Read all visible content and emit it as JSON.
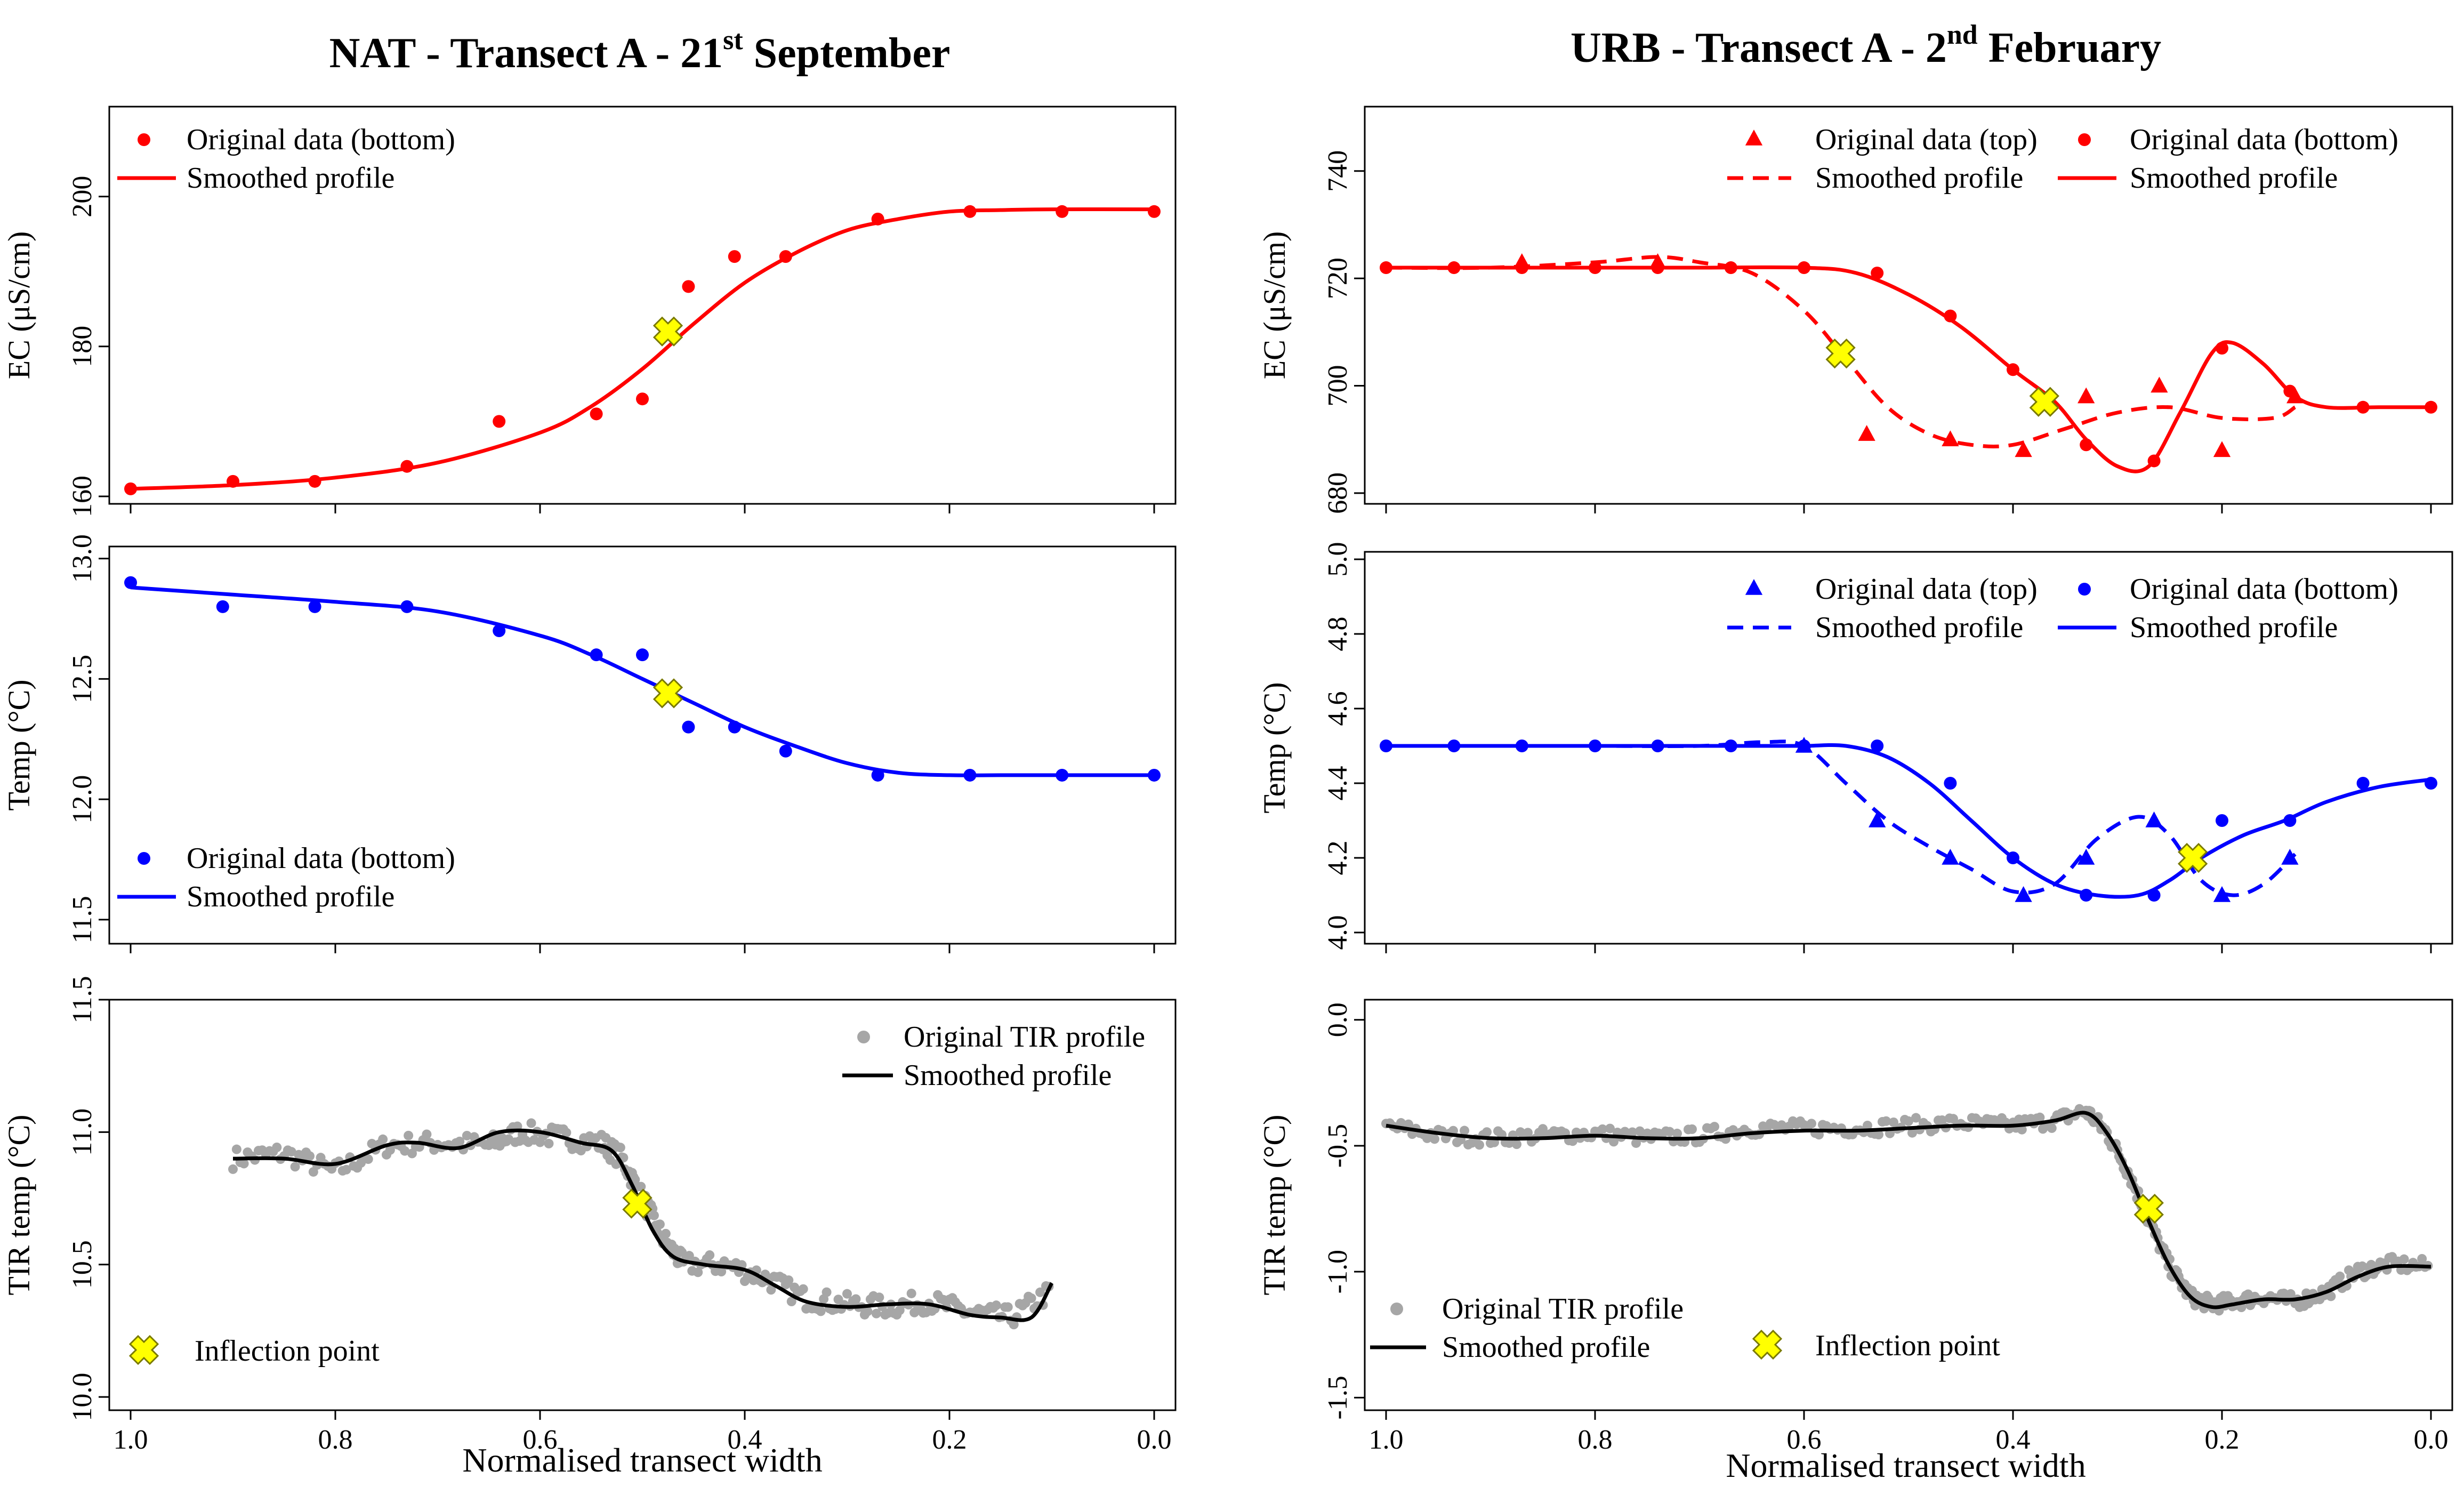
{
  "figure": {
    "left_title": "NAT - Transect A - 21",
    "left_title_sup": "st",
    "left_title_end": " September",
    "right_title": "URB - Transect A - 2",
    "right_title_sup": "nd",
    "right_title_end": " February",
    "xlabel": "Normalised transect width"
  },
  "colors": {
    "red": "#ff0000",
    "blue": "#0000ff",
    "gray": "#a6a6a6",
    "black": "#000000",
    "marker": "#ffff00"
  },
  "chart_data": [
    {
      "id": "nat-ec",
      "type": "scatter+line",
      "ylabel": "EC (μS/cm)",
      "xlim": [
        1.0,
        0.0
      ],
      "ylim": [
        159,
        212
      ],
      "xticks": [
        1.0,
        0.8,
        0.6,
        0.4,
        0.2,
        0.0
      ],
      "xtick_labels": [
        "1.0",
        "0.8",
        "0.6",
        "0.4",
        "0.2",
        "0.0"
      ],
      "yticks": [
        160,
        180,
        200
      ],
      "ytick_labels": [
        "160",
        "180",
        "200"
      ],
      "color": "red",
      "legend": [
        "Original data (bottom)",
        "Smoothed profile"
      ],
      "series": [
        {
          "name": "Original data (bottom)",
          "kind": "points",
          "marker": "circle",
          "x": [
            1.0,
            0.9,
            0.82,
            0.73,
            0.64,
            0.545,
            0.5,
            0.455,
            0.41,
            0.36,
            0.27,
            0.18,
            0.09,
            0.0
          ],
          "y": [
            161,
            162,
            162,
            164,
            170,
            171,
            173,
            188,
            192,
            192,
            197,
            198,
            198,
            198
          ]
        },
        {
          "name": "Smoothed profile",
          "kind": "line",
          "dash": false,
          "x": [
            1.0,
            0.9,
            0.8,
            0.7,
            0.6,
            0.55,
            0.5,
            0.45,
            0.4,
            0.35,
            0.3,
            0.25,
            0.2,
            0.15,
            0.1,
            0.0
          ],
          "y": [
            161,
            161.5,
            162.5,
            164.5,
            168.5,
            172,
            177,
            183,
            188.5,
            192.5,
            195.5,
            197,
            198,
            198.2,
            198.3,
            198.3
          ]
        }
      ],
      "inflection": {
        "x": 0.475,
        "y": 182
      }
    },
    {
      "id": "nat-temp",
      "type": "scatter+line",
      "ylabel": "Temp (°C)",
      "xlim": [
        1.0,
        0.0
      ],
      "ylim": [
        11.4,
        13.05
      ],
      "xticks": [
        1.0,
        0.8,
        0.6,
        0.4,
        0.2,
        0.0
      ],
      "xtick_labels": [
        "1.0",
        "0.8",
        "0.6",
        "0.4",
        "0.2",
        "0.0"
      ],
      "yticks": [
        11.5,
        12.0,
        12.5,
        13.0
      ],
      "ytick_labels": [
        "11.5",
        "12.0",
        "12.5",
        "13.0"
      ],
      "color": "blue",
      "legend": [
        "Original data (bottom)",
        "Smoothed profile"
      ],
      "series": [
        {
          "name": "Original data (bottom)",
          "kind": "points",
          "marker": "circle",
          "x": [
            1.0,
            0.91,
            0.82,
            0.73,
            0.64,
            0.545,
            0.5,
            0.455,
            0.41,
            0.36,
            0.27,
            0.18,
            0.09,
            0.0
          ],
          "y": [
            12.9,
            12.8,
            12.8,
            12.8,
            12.7,
            12.6,
            12.6,
            12.3,
            12.3,
            12.2,
            12.1,
            12.1,
            12.1,
            12.1
          ]
        },
        {
          "name": "Smoothed profile",
          "kind": "line",
          "dash": false,
          "x": [
            1.0,
            0.9,
            0.8,
            0.7,
            0.6,
            0.55,
            0.5,
            0.45,
            0.4,
            0.35,
            0.3,
            0.25,
            0.2,
            0.15,
            0.1,
            0.0
          ],
          "y": [
            12.88,
            12.85,
            12.82,
            12.78,
            12.68,
            12.6,
            12.5,
            12.4,
            12.3,
            12.22,
            12.15,
            12.11,
            12.1,
            12.1,
            12.1,
            12.1
          ]
        }
      ],
      "inflection": {
        "x": 0.475,
        "y": 12.44
      }
    },
    {
      "id": "nat-tir",
      "type": "scatter+line",
      "ylabel": "TIR temp (°C)",
      "xlim": [
        1.0,
        0.0
      ],
      "ylim": [
        9.95,
        11.5
      ],
      "xticks": [
        1.0,
        0.8,
        0.6,
        0.4,
        0.2,
        0.0
      ],
      "xtick_labels": [
        "1.0",
        "0.8",
        "0.6",
        "0.4",
        "0.2",
        "0.0"
      ],
      "yticks": [
        10.0,
        10.5,
        11.0,
        11.5
      ],
      "ytick_labels": [
        "10.0",
        "10.5",
        "11.0",
        "11.5"
      ],
      "color": "gray",
      "legend": [
        "Original TIR profile",
        "Smoothed profile",
        "Inflection point"
      ],
      "series": [
        {
          "name": "Original TIR profile",
          "kind": "points",
          "marker": "circle",
          "noise": 0.04,
          "x": [
            0.9,
            0.85,
            0.8,
            0.75,
            0.7,
            0.65,
            0.62,
            0.58,
            0.54,
            0.52,
            0.5,
            0.48,
            0.46,
            0.42,
            0.38,
            0.34,
            0.3,
            0.26,
            0.22,
            0.18,
            0.14,
            0.1
          ],
          "y": [
            10.9,
            10.92,
            10.85,
            10.95,
            10.96,
            10.95,
            11.0,
            10.98,
            10.96,
            10.9,
            10.75,
            10.6,
            10.5,
            10.5,
            10.45,
            10.37,
            10.35,
            10.34,
            10.36,
            10.32,
            10.3,
            10.4
          ]
        },
        {
          "name": "Smoothed profile",
          "kind": "line",
          "dash": false,
          "color": "black",
          "x": [
            0.9,
            0.85,
            0.8,
            0.75,
            0.72,
            0.68,
            0.64,
            0.6,
            0.56,
            0.53,
            0.51,
            0.49,
            0.47,
            0.44,
            0.4,
            0.37,
            0.34,
            0.3,
            0.26,
            0.22,
            0.18,
            0.15,
            0.12,
            0.1
          ],
          "y": [
            10.9,
            10.9,
            10.88,
            10.95,
            10.96,
            10.94,
            11.0,
            11.0,
            10.96,
            10.93,
            10.8,
            10.63,
            10.53,
            10.5,
            10.48,
            10.42,
            10.36,
            10.34,
            10.35,
            10.35,
            10.31,
            10.3,
            10.3,
            10.43
          ]
        }
      ],
      "inflection": {
        "x": 0.505,
        "y": 10.73
      }
    },
    {
      "id": "urb-ec",
      "type": "scatter+line",
      "ylabel": "EC (μS/cm)",
      "xlim": [
        1.0,
        0.0
      ],
      "ylim": [
        678,
        752
      ],
      "xticks": [
        1.0,
        0.8,
        0.6,
        0.4,
        0.2,
        0.0
      ],
      "xtick_labels": [
        "1.0",
        "0.8",
        "0.6",
        "0.4",
        "0.2",
        "0.0"
      ],
      "yticks": [
        680,
        700,
        720,
        740
      ],
      "ytick_labels": [
        "680",
        "700",
        "720",
        "740"
      ],
      "color": "red",
      "legend": [
        "Original data (top)",
        "Original data (bottom)",
        "Smoothed profile",
        "Smoothed profile"
      ],
      "series": [
        {
          "name": "Original data (top)",
          "kind": "points",
          "marker": "triangle",
          "x": [
            0.87,
            0.74,
            0.54,
            0.46,
            0.39,
            0.33,
            0.26,
            0.2,
            0.13
          ],
          "y": [
            723,
            723,
            691,
            690,
            688,
            698,
            700,
            688,
            698
          ]
        },
        {
          "name": "Original data (bottom)",
          "kind": "points",
          "marker": "circle",
          "x": [
            1.0,
            0.935,
            0.87,
            0.8,
            0.74,
            0.67,
            0.6,
            0.53,
            0.46,
            0.4,
            0.33,
            0.265,
            0.2,
            0.135,
            0.065,
            0.0
          ],
          "y": [
            722,
            722,
            722,
            722,
            722,
            722,
            722,
            721,
            713,
            703,
            689,
            686,
            707,
            699,
            696,
            696
          ]
        },
        {
          "name": "Smoothed profile (top)",
          "kind": "line",
          "dash": true,
          "x": [
            1.0,
            0.9,
            0.8,
            0.74,
            0.7,
            0.65,
            0.6,
            0.56,
            0.52,
            0.48,
            0.44,
            0.4,
            0.35,
            0.3,
            0.25,
            0.2,
            0.15,
            0.13
          ],
          "y": [
            722,
            722,
            723,
            724,
            723,
            721,
            714,
            705,
            696,
            691,
            689,
            689,
            692,
            695,
            696,
            694,
            694,
            696
          ]
        },
        {
          "name": "Smoothed profile (bottom)",
          "kind": "line",
          "dash": false,
          "x": [
            1.0,
            0.9,
            0.8,
            0.7,
            0.6,
            0.55,
            0.5,
            0.45,
            0.4,
            0.36,
            0.33,
            0.3,
            0.27,
            0.24,
            0.21,
            0.19,
            0.16,
            0.13,
            0.1,
            0.05,
            0.0
          ],
          "y": [
            722,
            722,
            722,
            722,
            722,
            721,
            717,
            711,
            703,
            697,
            690,
            685,
            685,
            695,
            706,
            708,
            704,
            698,
            696,
            696,
            696
          ]
        }
      ],
      "inflection": [
        {
          "x": 0.565,
          "y": 706
        },
        {
          "x": 0.37,
          "y": 697
        }
      ]
    },
    {
      "id": "urb-temp",
      "type": "scatter+line",
      "ylabel": "Temp (°C)",
      "xlim": [
        1.0,
        0.0
      ],
      "ylim": [
        3.97,
        5.02
      ],
      "xticks": [
        1.0,
        0.8,
        0.6,
        0.4,
        0.2,
        0.0
      ],
      "xtick_labels": [
        "1.0",
        "0.8",
        "0.6",
        "0.4",
        "0.2",
        "0.0"
      ],
      "yticks": [
        4.0,
        4.2,
        4.4,
        4.6,
        4.8,
        5.0
      ],
      "ytick_labels": [
        "4.0",
        "4.2",
        "4.4",
        "4.6",
        "4.8",
        "5.0"
      ],
      "color": "blue",
      "legend": [
        "Original data (top)",
        "Original data (bottom)",
        "Smoothed profile",
        "Smoothed profile"
      ],
      "series": [
        {
          "name": "Original data (top)",
          "kind": "points",
          "marker": "triangle",
          "x": [
            0.6,
            0.53,
            0.46,
            0.39,
            0.33,
            0.265,
            0.2,
            0.135
          ],
          "y": [
            4.5,
            4.3,
            4.2,
            4.1,
            4.2,
            4.3,
            4.1,
            4.2
          ]
        },
        {
          "name": "Original data (bottom)",
          "kind": "points",
          "marker": "circle",
          "x": [
            1.0,
            0.935,
            0.87,
            0.8,
            0.74,
            0.67,
            0.6,
            0.53,
            0.46,
            0.4,
            0.33,
            0.265,
            0.2,
            0.135,
            0.065,
            0.0
          ],
          "y": [
            4.5,
            4.5,
            4.5,
            4.5,
            4.5,
            4.5,
            4.5,
            4.5,
            4.4,
            4.2,
            4.1,
            4.1,
            4.3,
            4.3,
            4.4,
            4.4
          ]
        },
        {
          "name": "Smoothed profile (top)",
          "kind": "line",
          "dash": true,
          "x": [
            1.0,
            0.9,
            0.8,
            0.7,
            0.64,
            0.6,
            0.56,
            0.52,
            0.48,
            0.44,
            0.4,
            0.36,
            0.32,
            0.28,
            0.25,
            0.22,
            0.19,
            0.16,
            0.13
          ],
          "y": [
            4.5,
            4.5,
            4.5,
            4.5,
            4.51,
            4.5,
            4.4,
            4.3,
            4.23,
            4.17,
            4.11,
            4.13,
            4.25,
            4.31,
            4.26,
            4.14,
            4.1,
            4.13,
            4.21
          ]
        },
        {
          "name": "Smoothed profile (bottom)",
          "kind": "line",
          "dash": false,
          "x": [
            1.0,
            0.9,
            0.8,
            0.7,
            0.64,
            0.6,
            0.56,
            0.52,
            0.48,
            0.44,
            0.4,
            0.36,
            0.32,
            0.28,
            0.25,
            0.22,
            0.18,
            0.14,
            0.1,
            0.05,
            0.0
          ],
          "y": [
            4.5,
            4.5,
            4.5,
            4.5,
            4.5,
            4.5,
            4.5,
            4.47,
            4.4,
            4.3,
            4.2,
            4.13,
            4.1,
            4.1,
            4.14,
            4.2,
            4.26,
            4.3,
            4.35,
            4.39,
            4.41
          ]
        }
      ],
      "inflection": {
        "x": 0.228,
        "y": 4.2
      }
    },
    {
      "id": "urb-tir",
      "type": "scatter+line",
      "ylabel": "TIR temp (°C)",
      "xlim": [
        1.0,
        0.0
      ],
      "ylim": [
        -1.55,
        0.08
      ],
      "xticks": [
        1.0,
        0.8,
        0.6,
        0.4,
        0.2,
        0.0
      ],
      "xtick_labels": [
        "1.0",
        "0.8",
        "0.6",
        "0.4",
        "0.2",
        "0.0"
      ],
      "yticks": [
        -1.5,
        -1.0,
        -0.5,
        0.0
      ],
      "ytick_labels": [
        "-1.5",
        "-1.0",
        "-0.5",
        "0.0"
      ],
      "color": "gray",
      "legend": [
        "Original TIR profile",
        "Smoothed profile",
        "Inflection point"
      ],
      "series": [
        {
          "name": "Original TIR profile",
          "kind": "points",
          "marker": "circle",
          "noise": 0.03,
          "x": [
            1.0,
            0.95,
            0.9,
            0.85,
            0.8,
            0.75,
            0.7,
            0.65,
            0.6,
            0.55,
            0.5,
            0.45,
            0.4,
            0.36,
            0.33,
            0.31,
            0.29,
            0.27,
            0.25,
            0.23,
            0.21,
            0.19,
            0.16,
            0.13,
            0.1,
            0.07,
            0.04,
            0.0
          ],
          "y": [
            -0.42,
            -0.46,
            -0.47,
            -0.46,
            -0.45,
            -0.47,
            -0.46,
            -0.43,
            -0.43,
            -0.43,
            -0.42,
            -0.41,
            -0.42,
            -0.4,
            -0.36,
            -0.45,
            -0.6,
            -0.8,
            -0.98,
            -1.1,
            -1.13,
            -1.12,
            -1.1,
            -1.12,
            -1.08,
            -1.0,
            -0.97,
            -0.98
          ]
        },
        {
          "name": "Smoothed profile",
          "kind": "line",
          "dash": false,
          "color": "black",
          "x": [
            1.0,
            0.95,
            0.9,
            0.85,
            0.8,
            0.75,
            0.7,
            0.65,
            0.6,
            0.55,
            0.5,
            0.45,
            0.4,
            0.36,
            0.33,
            0.31,
            0.29,
            0.27,
            0.25,
            0.23,
            0.21,
            0.19,
            0.16,
            0.13,
            0.1,
            0.07,
            0.04,
            0.0
          ],
          "y": [
            -0.42,
            -0.45,
            -0.47,
            -0.47,
            -0.46,
            -0.47,
            -0.47,
            -0.45,
            -0.44,
            -0.44,
            -0.43,
            -0.42,
            -0.42,
            -0.4,
            -0.37,
            -0.45,
            -0.6,
            -0.8,
            -0.98,
            -1.1,
            -1.14,
            -1.13,
            -1.11,
            -1.11,
            -1.08,
            -1.02,
            -0.98,
            -0.98
          ]
        }
      ],
      "inflection": {
        "x": 0.27,
        "y": -0.75
      }
    }
  ]
}
